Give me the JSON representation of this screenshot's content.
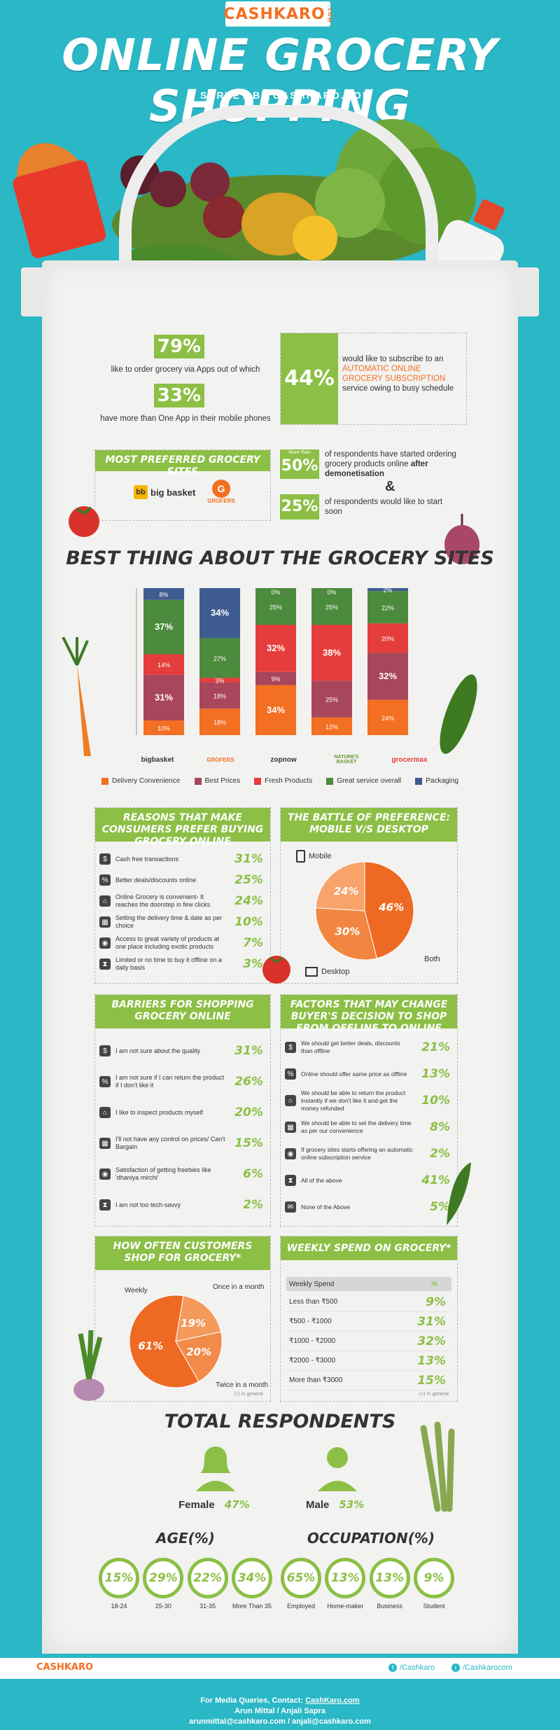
{
  "header": {
    "logo_main": "CASHKARO",
    "logo_suffix": ".COM",
    "title": "ONLINE GROCERY SHOPPING",
    "subtitle": "A SURVEY BY CASHKARO.COM"
  },
  "stats": {
    "apps_pct": "79%",
    "apps_text": "like to order grocery via  Apps out of which",
    "multi_pct": "33%",
    "multi_text": "have more than One App in their mobile phones",
    "subscribe_pct": "44%",
    "subscribe_text1": "would like to subscribe to an",
    "subscribe_highlight": "AUTOMATIC ONLINE GROCERY SUBSCRIPTION",
    "subscribe_text2": "service owing to busy schedule"
  },
  "preferred": {
    "heading": "MOST PREFERRED GROCERY SITES",
    "site1": "big basket",
    "site2": "GROFERS",
    "more_than": "More than",
    "demon_pct": "50%",
    "demon_text": "of respondents have started ordering grocery products online",
    "demon_bold": "after demonetisation",
    "amp": "&",
    "soon_pct": "25%",
    "soon_text": "of respondents would like to start soon"
  },
  "chart_data": {
    "type": "bar",
    "stacked": true,
    "title": "BEST THING ABOUT THE GROCERY SITES",
    "categories": [
      "bigbasket",
      "GROFERS",
      "zopnow",
      "NATURE'S BASKET",
      "grocermax"
    ],
    "series": [
      {
        "name": "Delivery Convenience",
        "color": "#f36f21",
        "values": [
          10,
          18,
          34,
          12,
          24
        ]
      },
      {
        "name": "Best Prices",
        "color": "#a8465c",
        "values": [
          31,
          18,
          9,
          25,
          32
        ]
      },
      {
        "name": "Fresh Products",
        "color": "#e53d3b",
        "values": [
          14,
          3,
          32,
          38,
          20
        ]
      },
      {
        "name": "Great service overall",
        "color": "#4c8a3d",
        "values": [
          37,
          27,
          25,
          25,
          22
        ]
      },
      {
        "name": "Packaging",
        "color": "#3e5c8f",
        "values": [
          8,
          34,
          0,
          0,
          2
        ]
      }
    ],
    "ylim": [
      0,
      100
    ]
  },
  "reasons": {
    "heading": "REASONS THAT MAKE CONSUMERS PREFER BUYING GROCERY ONLINE",
    "items": [
      {
        "label": "Cash free transactions",
        "pct": "31%"
      },
      {
        "label": "Better deals/discounts online",
        "pct": "25%"
      },
      {
        "label": "Online Grocery is convenient- It reaches the doorstep in few clicks",
        "pct": "24%"
      },
      {
        "label": "Setting the delivery time & date as per choice",
        "pct": "10%"
      },
      {
        "label": "Access to great variety of products at one place including exotic products",
        "pct": "7%"
      },
      {
        "label": "Limited or no time to buy it offline on a daily basis",
        "pct": "3%"
      }
    ]
  },
  "battle": {
    "heading": "THE BATTLE OF PREFERENCE: MOBILE V/S DESKTOP",
    "mobile_label": "Mobile",
    "desktop_label": "Desktop",
    "both_label": "Both",
    "slices": [
      {
        "name": "Both",
        "value": 46,
        "label": "46%",
        "color": "#ee6a23"
      },
      {
        "name": "Desktop",
        "value": 30,
        "label": "30%",
        "color": "#f28640"
      },
      {
        "name": "Mobile",
        "value": 24,
        "label": "24%",
        "color": "#f7a36a"
      }
    ]
  },
  "barriers": {
    "heading": "BARRIERS FOR SHOPPING GROCERY ONLINE",
    "items": [
      {
        "label": "I am not sure about the quality",
        "pct": "31%"
      },
      {
        "label": "I am not sure if I can return the product if I don't like it",
        "pct": "26%"
      },
      {
        "label": "I like to inspect products myself",
        "pct": "20%"
      },
      {
        "label": "I'll not have any control on prices/ Can't Bargain",
        "pct": "15%"
      },
      {
        "label": "Satisfaction of getting freebies like 'dhaniya mirchi'",
        "pct": "6%"
      },
      {
        "label": "I am not too tech-savvy",
        "pct": "2%"
      }
    ]
  },
  "factors": {
    "heading": "FACTORS THAT MAY CHANGE BUYER'S DECISION TO SHOP FROM OFFLINE TO ONLINE",
    "items": [
      {
        "label": "We should get better deals, discounts than offline",
        "pct": "21%"
      },
      {
        "label": "Online should offer same price as offline",
        "pct": "13%"
      },
      {
        "label": "We should be able to return the product instantly if we don't like it and get the money refunded",
        "pct": "10%"
      },
      {
        "label": "We should be able to set the delivery time as per our convenience",
        "pct": "8%"
      },
      {
        "label": "If grocery sites starts offering an automatic online subscription service",
        "pct": "2%"
      },
      {
        "label": "All of the above",
        "pct": "41%"
      },
      {
        "label": "None of the Above",
        "pct": "5%"
      }
    ]
  },
  "frequency": {
    "heading": "HOW OFTEN CUSTOMERS SHOP FOR GROCERY*",
    "weekly_label": "Weekly",
    "monthly_label": "Once in a month",
    "twice_label": "Twice in a month",
    "note": "(+) In general",
    "slices": [
      {
        "name": "Weekly",
        "value": 61,
        "label": "61%",
        "color": "#ee6a23"
      },
      {
        "name": "Once in a month",
        "value": 19,
        "label": "19%",
        "color": "#f49a5b"
      },
      {
        "name": "Twice in a month",
        "value": 20,
        "label": "20%",
        "color": "#f28a4a"
      }
    ]
  },
  "spend": {
    "heading": "WEEKLY SPEND ON GROCERY*",
    "col1": "Weekly Spend",
    "col2": "%",
    "rows": [
      {
        "label": "Less than ₹500",
        "pct": "9%"
      },
      {
        "label": "₹500 - ₹1000",
        "pct": "31%"
      },
      {
        "label": "₹1000 - ₹2000",
        "pct": "32%"
      },
      {
        "label": "₹2000 - ₹3000",
        "pct": "13%"
      },
      {
        "label": "More than ₹3000",
        "pct": "15%"
      }
    ],
    "note": "(+) In general"
  },
  "respondents": {
    "heading": "TOTAL RESPONDENTS",
    "female_label": "Female",
    "female_pct": "47%",
    "male_label": "Male",
    "male_pct": "53%"
  },
  "age": {
    "heading": "AGE(%)",
    "items": [
      {
        "pct": "15%",
        "label": "18-24"
      },
      {
        "pct": "29%",
        "label": "25-30"
      },
      {
        "pct": "22%",
        "label": "31-35"
      },
      {
        "pct": "34%",
        "label": "More Than 35"
      }
    ]
  },
  "occupation": {
    "heading": "OCCUPATION(%)",
    "items": [
      {
        "pct": "65%",
        "label": "Employed"
      },
      {
        "pct": "13%",
        "label": "Home-maker"
      },
      {
        "pct": "13%",
        "label": "Business"
      },
      {
        "pct": "9%",
        "label": "Student"
      }
    ]
  },
  "footer": {
    "logo": "CASHKARO",
    "facebook": "/Cashkaro",
    "twitter": "/Cashkarocom",
    "media_label": "For Media Queries, Contact:",
    "media_link": "CashKaro.com",
    "names": "Arun Mittal / Anjali Sapra",
    "emails": "arunmittal@cashkaro.com / anjali@cashkaro.com"
  }
}
